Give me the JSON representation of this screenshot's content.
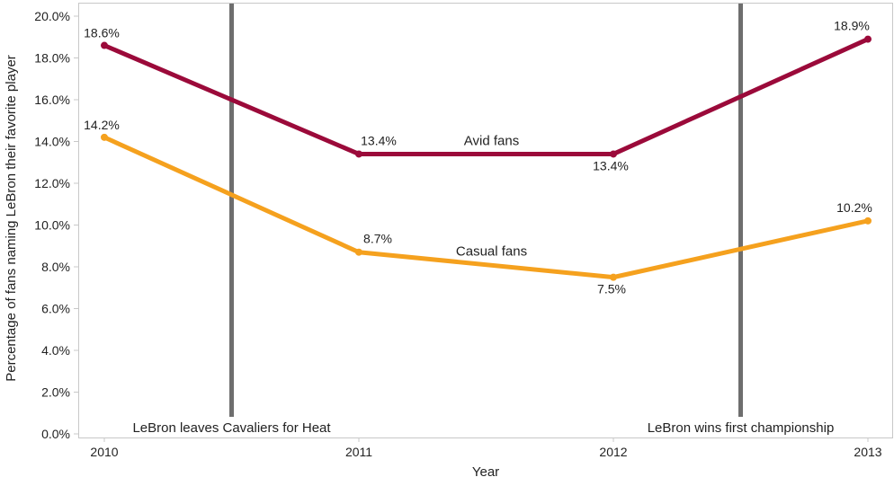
{
  "chart_data": {
    "type": "line",
    "x": [
      "2010",
      "2011",
      "2012",
      "2013"
    ],
    "xlabel": "Year",
    "ylabel": "Percentage of fans naming LeBron their favorite player",
    "ylim": [
      0,
      20
    ],
    "yticks": [
      "0.0%",
      "2.0%",
      "4.0%",
      "6.0%",
      "8.0%",
      "10.0%",
      "12.0%",
      "14.0%",
      "16.0%",
      "18.0%",
      "20.0%"
    ],
    "grid": false,
    "series": [
      {
        "name": "Avid fans",
        "values": [
          18.6,
          13.4,
          13.4,
          18.9
        ],
        "labels": [
          "18.6%",
          "13.4%",
          "13.4%",
          "18.9%"
        ],
        "color": "#9b0a3a"
      },
      {
        "name": "Casual fans",
        "values": [
          14.2,
          8.7,
          7.5,
          10.2
        ],
        "labels": [
          "14.2%",
          "8.7%",
          "7.5%",
          "10.2%"
        ],
        "color": "#f5a11e"
      }
    ],
    "annotations": [
      {
        "text": "LeBron leaves Cavaliers for Heat",
        "x": 2010.5
      },
      {
        "text": "LeBron wins first championship",
        "x": 2012.5
      }
    ],
    "annotation_line_color": "#6e6e6e"
  }
}
